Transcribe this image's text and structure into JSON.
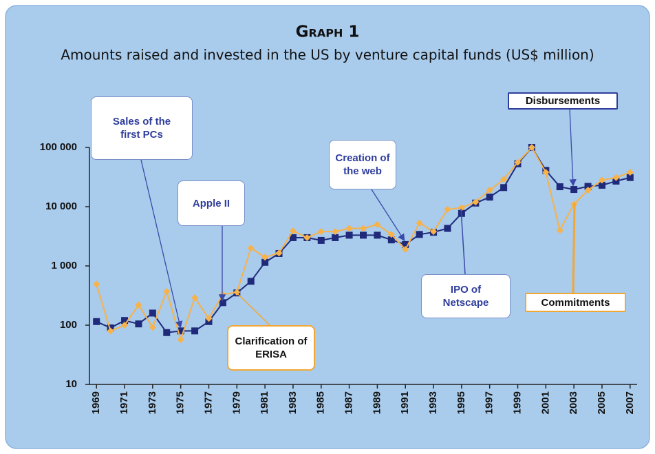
{
  "chart_data": {
    "type": "line",
    "title": "Graph 1",
    "subtitle": "Amounts raised and invested in the US by venture capital funds (US$ million)",
    "x": [
      1969,
      1970,
      1971,
      1972,
      1973,
      1974,
      1975,
      1976,
      1977,
      1978,
      1979,
      1980,
      1981,
      1982,
      1983,
      1984,
      1985,
      1986,
      1987,
      1988,
      1989,
      1990,
      1991,
      1992,
      1993,
      1994,
      1995,
      1996,
      1997,
      1998,
      1999,
      2000,
      2001,
      2002,
      2003,
      2004,
      2005,
      2006,
      2007
    ],
    "series": [
      {
        "name": "Disbursements",
        "color": "#1f2a7a",
        "values": [
          115,
          90,
          120,
          105,
          160,
          75,
          80,
          80,
          115,
          240,
          350,
          550,
          1150,
          1620,
          3000,
          3000,
          2700,
          3000,
          3300,
          3300,
          3300,
          2750,
          2300,
          3400,
          3700,
          4300,
          7700,
          11500,
          14500,
          21000,
          53000,
          100000,
          41000,
          21700,
          19500,
          22000,
          23000,
          27000,
          31000
        ]
      },
      {
        "name": "Commitments",
        "color": "#f7b24a",
        "values": [
          490,
          80,
          100,
          220,
          92,
          370,
          57,
          290,
          130,
          330,
          360,
          2000,
          1400,
          1650,
          3900,
          3000,
          3800,
          3800,
          4300,
          4300,
          5000,
          3400,
          1900,
          5300,
          3800,
          9000,
          9600,
          12000,
          19000,
          29000,
          56000,
          100000,
          38000,
          4000,
          11000,
          19000,
          28000,
          31000,
          38000
        ]
      }
    ],
    "xlim": [
      1968.5,
      2007.5
    ],
    "xticks": [
      1969,
      1971,
      1973,
      1975,
      1977,
      1979,
      1981,
      1983,
      1985,
      1987,
      1989,
      1991,
      1993,
      1995,
      1997,
      1999,
      2001,
      2003,
      2005,
      2007
    ],
    "ylim": [
      10,
      100000
    ],
    "yticks": [
      10,
      100,
      {
        "value": 1000,
        "label": "1 000"
      },
      {
        "value": 10000,
        "label": "10 000"
      },
      {
        "value": 100000,
        "label": "100 000"
      }
    ],
    "log_scale": true,
    "annotations": [
      {
        "text": "Sales of the first PCs"
      },
      {
        "text": "Apple II"
      },
      {
        "text": "Clarification of ERISA"
      },
      {
        "text": "Creation of the web"
      },
      {
        "text": "IPO of Netscape"
      }
    ]
  }
}
